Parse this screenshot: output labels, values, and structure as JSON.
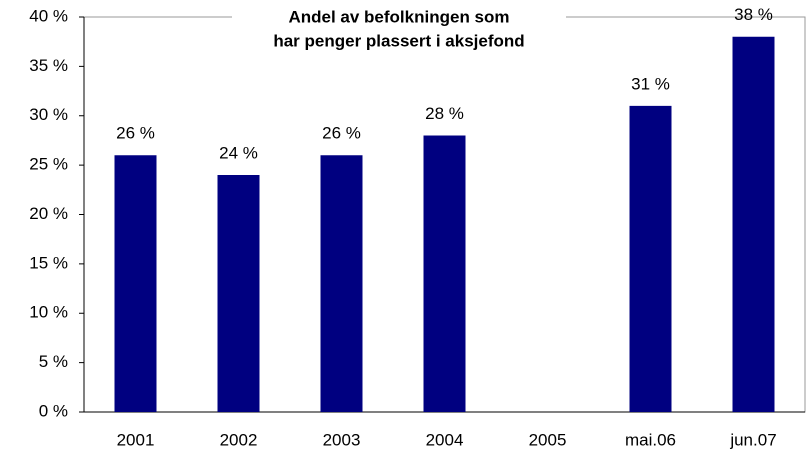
{
  "chart_data": {
    "type": "bar",
    "title": [
      "Andel av befolkningen som",
      "har penger plassert i aksjefond"
    ],
    "categories": [
      "2001",
      "2002",
      "2003",
      "2004",
      "2005",
      "mai.06",
      "jun.07"
    ],
    "values": [
      26,
      24,
      26,
      28,
      null,
      31,
      38
    ],
    "value_labels": [
      "26 %",
      "24 %",
      "26 %",
      "28 %",
      null,
      "31 %",
      "38 %"
    ],
    "color": "#000080",
    "ylim": [
      0,
      40
    ],
    "yticks": [
      {
        "value": 0,
        "label": "0 %"
      },
      {
        "value": 5,
        "label": "5 %"
      },
      {
        "value": 10,
        "label": "10 %"
      },
      {
        "value": 15,
        "label": "15 %"
      },
      {
        "value": 20,
        "label": "20 %"
      },
      {
        "value": 25,
        "label": "25 %"
      },
      {
        "value": 30,
        "label": "30 %"
      },
      {
        "value": 35,
        "label": "35 %"
      },
      {
        "value": 40,
        "label": "40 %"
      }
    ],
    "grid": false
  }
}
